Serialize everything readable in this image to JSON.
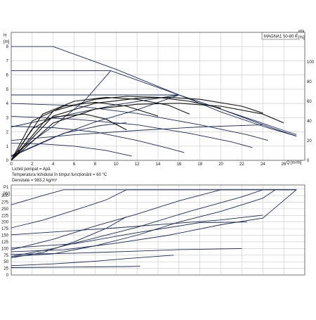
{
  "chart_data": [
    {
      "type": "line",
      "title": "MAGNA1 50-80 F",
      "ylabel": "H",
      "yunit": "[m]",
      "y2label": "eta",
      "y2unit": "[%]",
      "xlabel": "Q",
      "xunit": "[m³/h]",
      "xlim": [
        0,
        28
      ],
      "ylim": [
        0,
        9
      ],
      "y2lim": [
        0,
        130
      ],
      "xticks": [
        "0",
        "2",
        "4",
        "6",
        "8",
        "10",
        "12",
        "14",
        "16",
        "18",
        "20",
        "22",
        "24",
        "26"
      ],
      "yticks": [
        "0",
        "1",
        "2",
        "3",
        "4",
        "5",
        "6",
        "7",
        "8"
      ],
      "y2ticks": [
        "0",
        "20",
        "40",
        "60",
        "80",
        "100"
      ],
      "grid": true,
      "pump_curves": [
        {
          "values": [
            [
              0,
              8
            ],
            [
              4,
              8
            ],
            [
              10,
              6.4
            ],
            [
              16,
              4.6
            ],
            [
              20,
              3.4
            ],
            [
              24,
              2.4
            ],
            [
              27.2,
              1.7
            ]
          ]
        },
        {
          "values": [
            [
              0,
              6.3
            ],
            [
              9.5,
              6.3
            ],
            [
              16,
              4.6
            ],
            [
              22,
              3.1
            ],
            [
              26,
              2.1
            ],
            [
              27.2,
              1.8
            ]
          ]
        },
        {
          "values": [
            [
              0,
              4.6
            ],
            [
              16,
              4.6
            ],
            [
              20,
              3.6
            ],
            [
              24,
              2.5
            ],
            [
              27.2,
              1.7
            ]
          ]
        },
        {
          "values": [
            [
              0,
              4.0
            ],
            [
              6,
              3.85
            ],
            [
              12,
              3.3
            ],
            [
              18,
              2.5
            ],
            [
              22.5,
              1.8
            ],
            [
              24.5,
              1.4
            ]
          ]
        },
        {
          "values": [
            [
              0,
              3.1
            ],
            [
              6,
              2.9
            ],
            [
              12,
              2.5
            ],
            [
              17,
              1.9
            ],
            [
              21,
              1.3
            ],
            [
              23,
              0.9
            ]
          ]
        },
        {
          "values": [
            [
              0,
              2.4
            ],
            [
              4,
              2.3
            ],
            [
              8,
              2.0
            ],
            [
              12,
              1.4
            ],
            [
              15,
              0.85
            ],
            [
              16.5,
              0.55
            ]
          ]
        },
        {
          "values": [
            [
              0,
              1.2
            ],
            [
              3,
              1.15
            ],
            [
              6,
              1.0
            ],
            [
              9,
              0.7
            ],
            [
              11.5,
              0.3
            ]
          ]
        }
      ],
      "curve_lines": [
        {
          "values": [
            [
              0,
              0.3
            ],
            [
              4,
              2.4
            ],
            [
              7,
              4.2
            ],
            [
              9.5,
              6.3
            ]
          ]
        },
        {
          "values": [
            [
              0,
              0.3
            ],
            [
              4,
              1.6
            ],
            [
              8,
              2.7
            ],
            [
              12,
              3.55
            ],
            [
              16,
              4.6
            ]
          ]
        },
        {
          "values": [
            [
              0,
              2.35
            ],
            [
              6,
              3.3
            ],
            [
              10,
              3.9
            ],
            [
              16,
              4.6
            ]
          ]
        },
        {
          "values": [
            [
              0,
              1.4
            ],
            [
              6,
              1.8
            ],
            [
              12,
              2.1
            ],
            [
              18,
              2.35
            ],
            [
              24,
              2.5
            ]
          ]
        },
        {
          "values": [
            [
              0,
              0.25
            ],
            [
              5,
              1.9
            ],
            [
              8.5,
              2.45
            ],
            [
              11,
              2.65
            ]
          ]
        }
      ],
      "efficiency_curves": [
        {
          "values": [
            [
              0,
              0
            ],
            [
              4,
              38
            ],
            [
              8,
              52
            ],
            [
              12,
              57
            ],
            [
              16,
              58
            ],
            [
              20,
              55
            ],
            [
              24,
              47
            ],
            [
              26,
              38
            ]
          ]
        },
        {
          "values": [
            [
              0,
              0
            ],
            [
              4,
              45
            ],
            [
              8,
              58
            ],
            [
              12,
              63
            ],
            [
              15,
              64
            ],
            [
              18,
              62
            ],
            [
              22,
              55
            ],
            [
              24,
              48
            ]
          ]
        },
        {
          "values": [
            [
              0,
              0
            ],
            [
              4,
              50
            ],
            [
              8,
              62
            ],
            [
              11,
              65
            ],
            [
              14,
              64
            ],
            [
              17,
              60
            ],
            [
              20,
              53
            ]
          ]
        },
        {
          "values": [
            [
              0,
              0
            ],
            [
              3,
              47
            ],
            [
              6,
              60
            ],
            [
              9,
              64
            ],
            [
              12,
              62
            ],
            [
              15,
              56
            ],
            [
              17,
              47
            ]
          ]
        },
        {
          "values": [
            [
              0,
              0
            ],
            [
              2,
              40
            ],
            [
              5,
              55
            ],
            [
              8,
              59
            ],
            [
              11,
              55
            ],
            [
              14,
              45
            ]
          ]
        },
        {
          "values": [
            [
              0,
              0
            ],
            [
              2,
              32
            ],
            [
              4,
              44
            ],
            [
              7,
              47
            ],
            [
              9,
              42
            ],
            [
              11,
              31
            ]
          ]
        }
      ]
    },
    {
      "type": "line",
      "title": "",
      "ylabel": "P1",
      "yunit": "[W]",
      "xlim": [
        0,
        28
      ],
      "ylim": [
        0,
        340
      ],
      "yticks": [
        "0",
        "25",
        "50",
        "75",
        "100",
        "125",
        "150",
        "175",
        "200",
        "225",
        "250",
        "275",
        "300"
      ],
      "grid": true,
      "power_curves": [
        {
          "values": [
            [
              0,
              265
            ],
            [
              3,
              300
            ],
            [
              5,
              322
            ],
            [
              27.2,
              322
            ]
          ]
        },
        {
          "values": [
            [
              0,
              178
            ],
            [
              3,
              207
            ],
            [
              6,
              244
            ],
            [
              9,
              283
            ],
            [
              11,
              322
            ],
            [
              27.2,
              322
            ]
          ]
        },
        {
          "values": [
            [
              0,
              95
            ],
            [
              4,
              135
            ],
            [
              8,
              185
            ],
            [
              12,
              230
            ],
            [
              16,
              280
            ],
            [
              20,
              322
            ],
            [
              27.2,
              322
            ]
          ]
        },
        {
          "values": [
            [
              0,
              70
            ],
            [
              4,
              100
            ],
            [
              8,
              140
            ],
            [
              12,
              180
            ],
            [
              17,
              240
            ],
            [
              22,
              295
            ],
            [
              24,
              322
            ],
            [
              27.2,
              322
            ]
          ]
        },
        {
          "values": [
            [
              0,
              152
            ],
            [
              10,
              178
            ],
            [
              20,
              208
            ],
            [
              24,
              226
            ]
          ]
        },
        {
          "values": [
            [
              0,
              88
            ],
            [
              5,
              95
            ],
            [
              10,
              120
            ],
            [
              15,
              150
            ],
            [
              20,
              190
            ],
            [
              24,
              215
            ],
            [
              27.2,
              322
            ]
          ]
        },
        {
          "values": [
            [
              0,
              70
            ],
            [
              4,
              80
            ],
            [
              8,
              110
            ],
            [
              12,
              150
            ],
            [
              16,
              200
            ],
            [
              20,
              240
            ],
            [
              24,
              290
            ],
            [
              25.2,
              322
            ]
          ]
        },
        {
          "values": [
            [
              0,
              35
            ],
            [
              4,
              42
            ],
            [
              8,
              52
            ],
            [
              11,
              62
            ],
            [
              15.5,
              75
            ]
          ]
        },
        {
          "values": [
            [
              0,
              65
            ],
            [
              3,
              85
            ],
            [
              6,
              125
            ],
            [
              9,
              175
            ],
            [
              11,
              220
            ]
          ]
        },
        {
          "values": [
            [
              0,
              102
            ],
            [
              6,
              118
            ],
            [
              12,
              160
            ],
            [
              18,
              198
            ],
            [
              22.5,
              200
            ]
          ]
        },
        {
          "values": [
            [
              0,
              78
            ],
            [
              6,
              82
            ],
            [
              12,
              90
            ],
            [
              16,
              96
            ],
            [
              22,
              100
            ]
          ]
        },
        {
          "values": [
            [
              0,
              28
            ],
            [
              6,
              30
            ],
            [
              11,
              32
            ],
            [
              12.3,
              33
            ]
          ]
        }
      ]
    }
  ],
  "notes": {
    "medium": "Lichid pompat = Apă",
    "temperature": "Temperatura lichidului în timpul funcționării = 60 °C",
    "density": "Densitate = 983.2 kg/m³"
  }
}
